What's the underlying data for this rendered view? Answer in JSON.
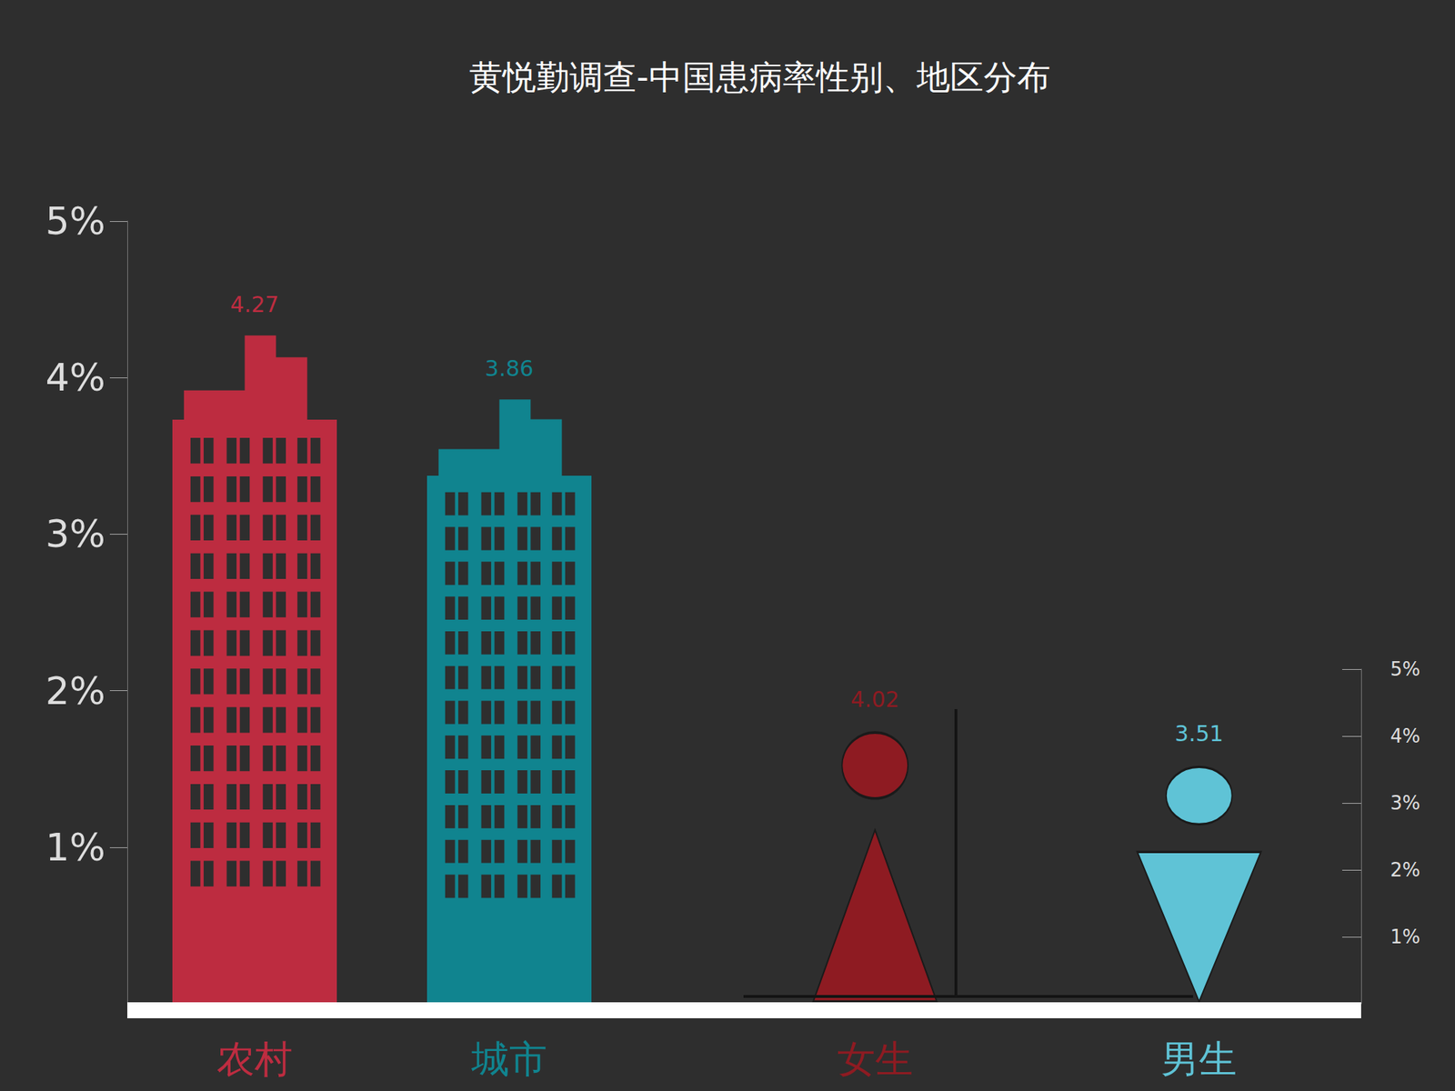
{
  "chart_data": [
    {
      "type": "bar",
      "title": "黄悦勤调查-中国患病率性别、地区分布",
      "categories": [
        "农村",
        "城市"
      ],
      "values": [
        4.27,
        3.86
      ],
      "colors": [
        "#bd2c40",
        "#10848f"
      ],
      "ylim": [
        0,
        5
      ],
      "yticks": [
        {
          "value": 1,
          "label": "1%"
        },
        {
          "value": 2,
          "label": "2%"
        },
        {
          "value": 3,
          "label": "3%"
        },
        {
          "value": 4,
          "label": "4%"
        },
        {
          "value": 5,
          "label": "5%"
        }
      ],
      "grid": false,
      "data_labels": true
    },
    {
      "type": "bar",
      "categories": [
        "女生",
        "男生"
      ],
      "values": [
        4.02,
        3.51
      ],
      "colors": [
        "#8e1b22",
        "#5fc3d6"
      ],
      "y2lim": [
        0,
        5
      ],
      "y2ticks": [
        {
          "value": 1,
          "label": "1%"
        },
        {
          "value": 2,
          "label": "2%"
        },
        {
          "value": 3,
          "label": "3%"
        },
        {
          "value": 4,
          "label": "4%"
        },
        {
          "value": 5,
          "label": "5%"
        }
      ],
      "grid": false,
      "data_labels": true
    }
  ]
}
